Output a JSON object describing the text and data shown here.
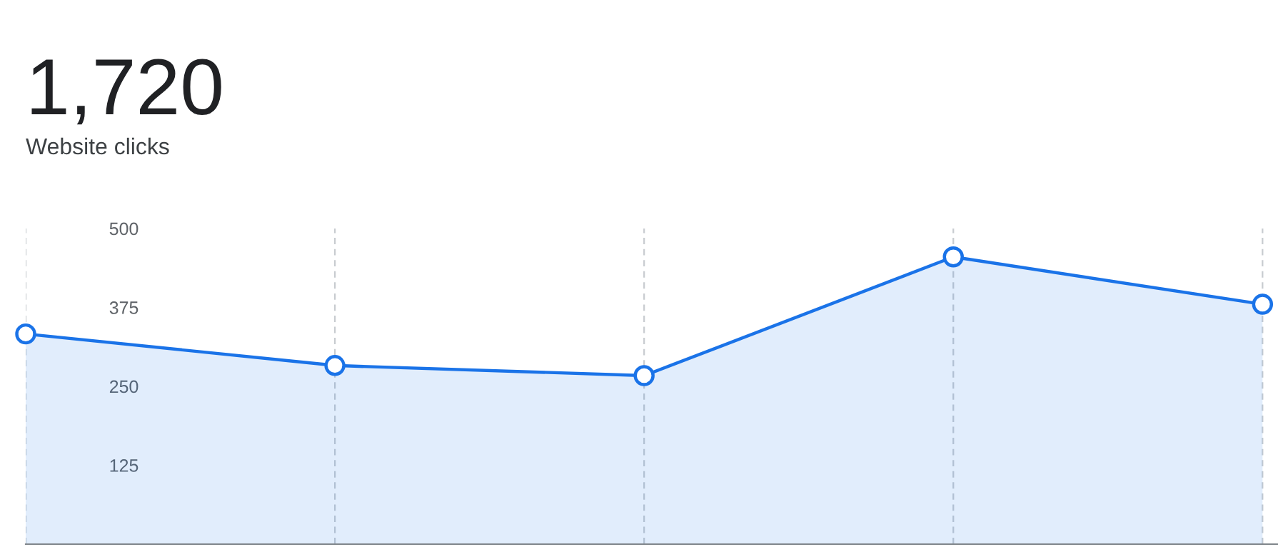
{
  "chart_data": {
    "type": "area",
    "title": "1,720",
    "subtitle": "Website clicks",
    "categories": [
      null,
      null,
      null,
      null,
      null
    ],
    "series": [
      {
        "color": "#1a73e8",
        "values": [
          333,
          283,
          267,
          455,
          380
        ]
      }
    ],
    "ylim": [
      0,
      500
    ],
    "yticks": [
      125,
      250,
      375,
      500
    ],
    "grid": "x",
    "marker": "circle",
    "line_style": "solid",
    "tick_labels": "y"
  }
}
